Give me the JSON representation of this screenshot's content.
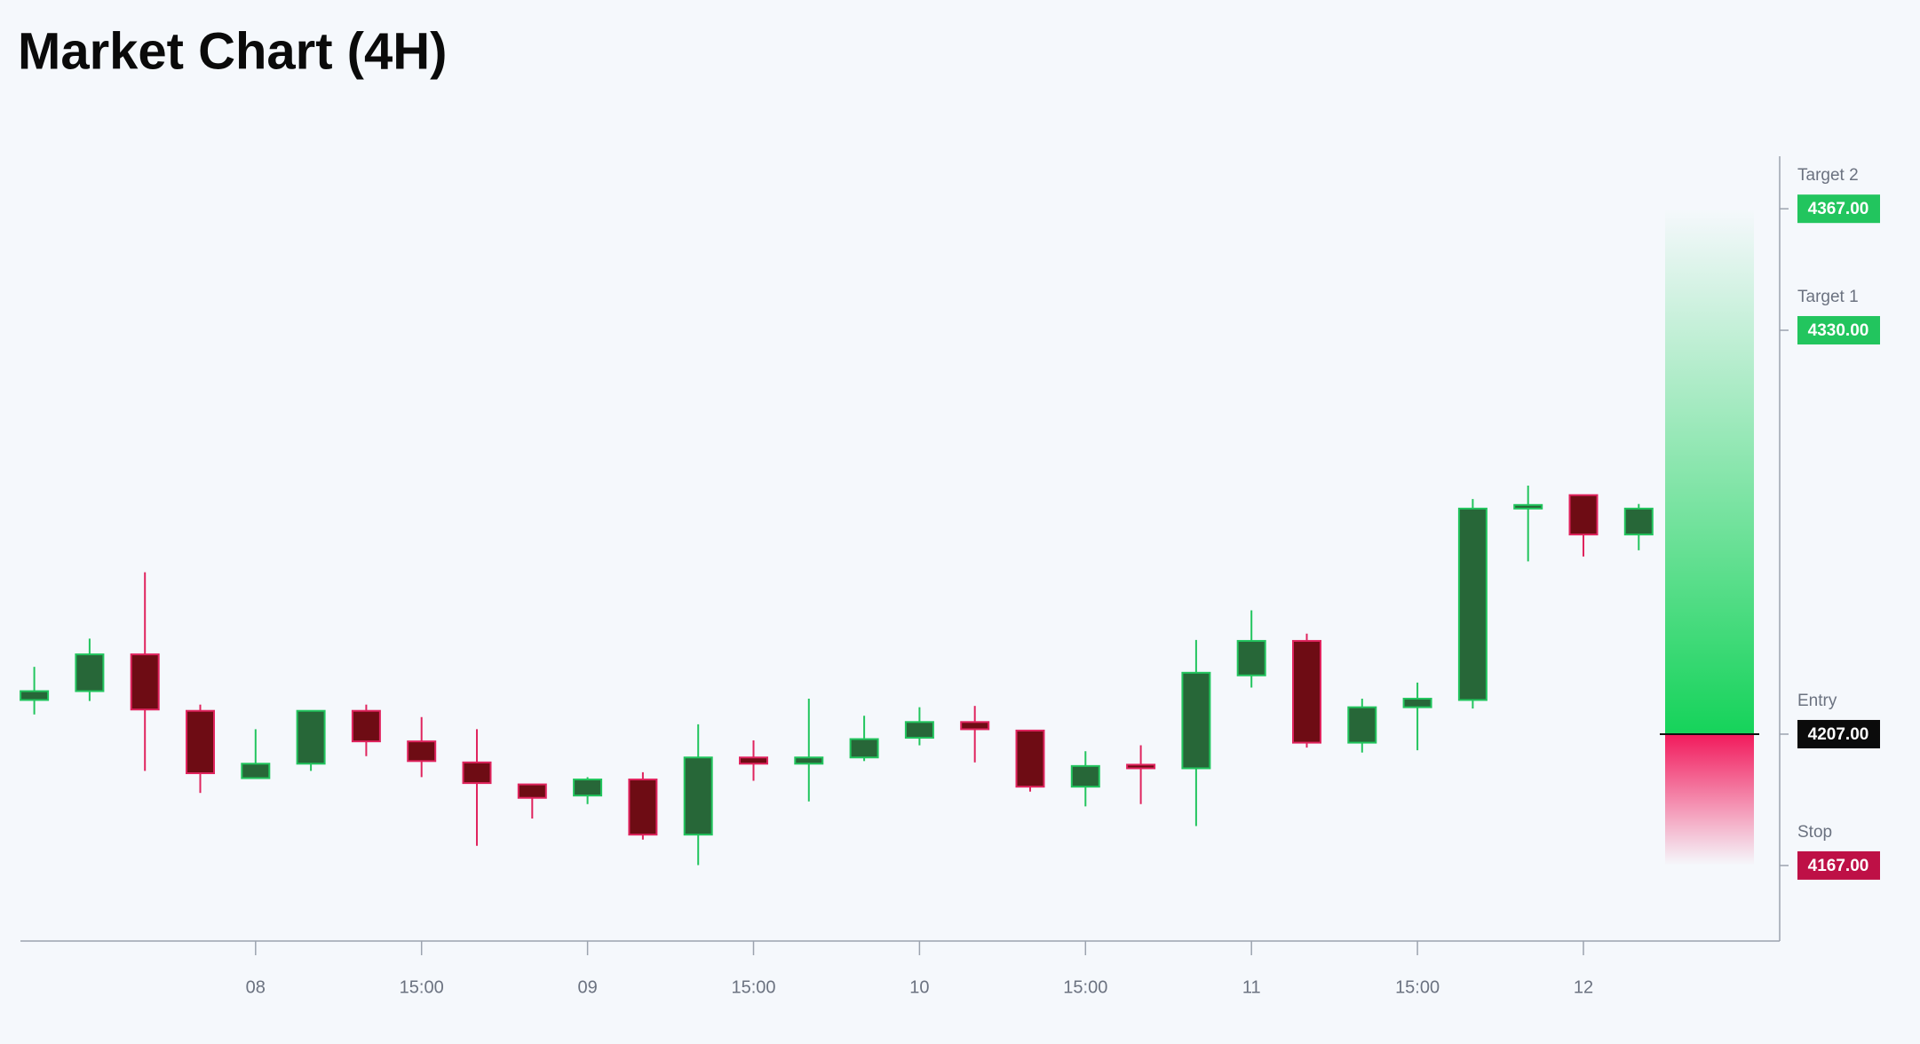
{
  "chart_data": {
    "type": "candlestick",
    "title": "Market Chart (4H)",
    "categories": [
      null,
      null,
      null,
      null,
      "08",
      null,
      null,
      "15:00",
      null,
      null,
      "09",
      null,
      null,
      "15:00",
      null,
      null,
      "10",
      null,
      null,
      "15:00",
      null,
      null,
      "11",
      null,
      null,
      "15:00",
      null,
      null,
      "12",
      null
    ],
    "open": [
      4217.4,
      4220.1,
      4231.3,
      4214.1,
      4193.6,
      4198.0,
      4214.1,
      4204.8,
      4198.4,
      4191.7,
      4188.3,
      4193.2,
      4176.4,
      4199.9,
      4198.0,
      4199.9,
      4205.9,
      4210.7,
      4208.1,
      4191.0,
      4197.7,
      4196.6,
      4224.9,
      4235.4,
      4204.4,
      4215.2,
      4217.4,
      4275.7,
      4279.8,
      4267.8
    ],
    "high": [
      4227.5,
      4236.1,
      4256.3,
      4216.0,
      4208.5,
      4214.1,
      4216.0,
      4212.2,
      4208.5,
      4191.7,
      4193.9,
      4195.4,
      4210.0,
      4205.1,
      4217.8,
      4212.6,
      4215.2,
      4215.6,
      4208.1,
      4201.8,
      4203.6,
      4235.7,
      4244.7,
      4237.6,
      4217.8,
      4222.7,
      4278.6,
      4282.7,
      4279.8,
      4277.1
    ],
    "low": [
      4213.0,
      4217.1,
      4195.8,
      4189.1,
      4193.6,
      4195.8,
      4200.3,
      4193.9,
      4173.0,
      4181.3,
      4185.7,
      4174.9,
      4167.1,
      4192.8,
      4186.5,
      4198.8,
      4203.6,
      4198.4,
      4189.5,
      4185.0,
      4185.7,
      4179.0,
      4221.2,
      4202.9,
      4201.4,
      4202.1,
      4214.8,
      4259.6,
      4261.1,
      4263.0
    ],
    "close": [
      4220.1,
      4231.3,
      4214.5,
      4195.1,
      4198.0,
      4214.1,
      4204.8,
      4198.8,
      4192.1,
      4187.6,
      4193.2,
      4176.4,
      4199.9,
      4198.0,
      4199.9,
      4205.5,
      4210.7,
      4208.5,
      4191.0,
      4197.3,
      4196.6,
      4225.7,
      4235.4,
      4204.4,
      4215.2,
      4217.8,
      4275.7,
      4276.8,
      4267.8,
      4275.7
    ],
    "up_color": "#276738",
    "up_border": "#22c55e",
    "down_color": "#6e0c14",
    "down_border": "#e0245e",
    "ylim": [
      4144,
      4383
    ],
    "levels": {
      "names": [
        "Target 2",
        "Target 1",
        "Entry",
        "Stop"
      ],
      "values": [
        4367,
        4330,
        4207,
        4167
      ],
      "value_labels": [
        "4367.00",
        "4330.00",
        "4207.00",
        "4167.00"
      ],
      "colors": [
        "#22c55e",
        "#22c55e",
        "#0b0b0b",
        "#be1046"
      ]
    }
  }
}
